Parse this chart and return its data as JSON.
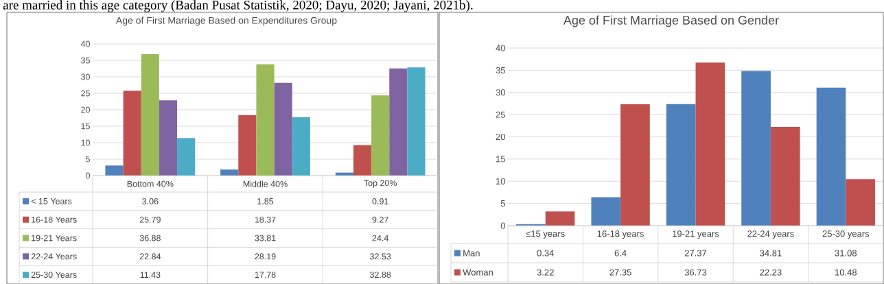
{
  "chart_data": [
    {
      "type": "bar",
      "title": "Age of First Marriage Based on Expenditures Group",
      "annotations": [
        "are married in this age category (Badan Pusat Statistik, 2020; Dayu, 2020; Jayani, 2021b)."
      ],
      "categories": [
        "Bottom 40%",
        "Middle 40%",
        "Top 20%"
      ],
      "series": [
        {
          "name": "< 15 Years",
          "color": "#4f81bd",
          "values": [
            3.06,
            1.85,
            0.91
          ]
        },
        {
          "name": "16-18 Years",
          "color": "#c0504d",
          "values": [
            25.79,
            18.37,
            9.27
          ]
        },
        {
          "name": "19-21 Years",
          "color": "#9bbb59",
          "values": [
            36.88,
            33.81,
            24.4
          ]
        },
        {
          "name": "22-24 Years",
          "color": "#8064a2",
          "values": [
            22.84,
            28.19,
            32.53
          ]
        },
        {
          "name": "25-30 Years",
          "color": "#4bacc6",
          "values": [
            11.43,
            17.78,
            32.88
          ]
        }
      ],
      "ylim": [
        0,
        40
      ],
      "yticks": [
        0,
        5,
        10,
        15,
        20,
        25,
        30,
        35,
        40
      ],
      "grid": "y",
      "legend": "bottom",
      "data_labels": true
    },
    {
      "type": "bar",
      "title": "Age of First Marriage Based on Gender",
      "categories": [
        "≤15 years",
        "16-18 years",
        "19-21 years",
        "22-24 years",
        "25-30 years"
      ],
      "series": [
        {
          "name": "Man",
          "color": "#4f81bd",
          "values": [
            0.34,
            6.4,
            27.37,
            34.81,
            31.08
          ]
        },
        {
          "name": "Woman",
          "color": "#c0504d",
          "values": [
            3.22,
            27.35,
            36.73,
            22.23,
            10.48
          ]
        }
      ],
      "ylim": [
        0,
        40
      ],
      "yticks": [
        0,
        5,
        10,
        15,
        20,
        25,
        30,
        35,
        40
      ],
      "grid": "y",
      "legend": "bottom",
      "data_labels": true
    }
  ]
}
